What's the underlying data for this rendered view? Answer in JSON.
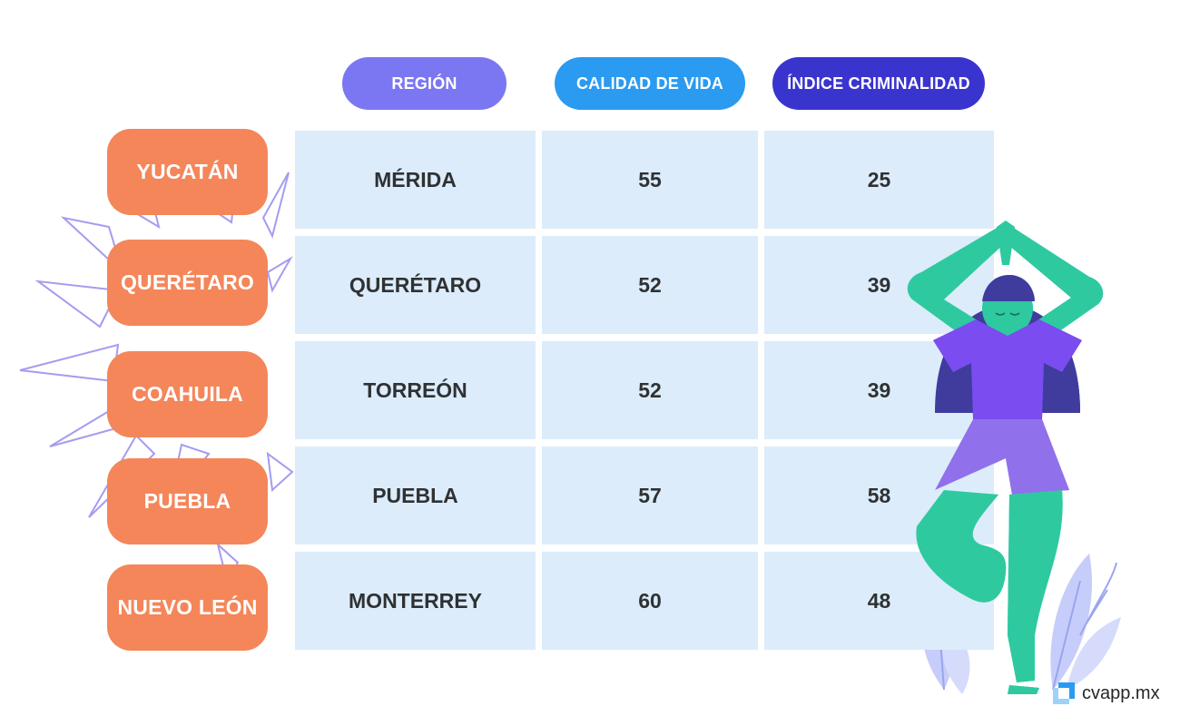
{
  "headers": {
    "region": "REGIÓN",
    "calidad": "CALIDAD DE VIDA",
    "criminalidad": "ÍNDICE CRIMINALIDAD"
  },
  "rows": [
    {
      "state": "YUCATÁN",
      "city": "MÉRIDA",
      "calidad": "55",
      "criminalidad": "25"
    },
    {
      "state": "QUERÉTARO",
      "city": "QUERÉTARO",
      "calidad": "52",
      "criminalidad": "39"
    },
    {
      "state": "COAHUILA",
      "city": "TORREÓN",
      "calidad": "52",
      "criminalidad": "39"
    },
    {
      "state": "PUEBLA",
      "city": "PUEBLA",
      "calidad": "57",
      "criminalidad": "58"
    },
    {
      "state": "NUEVO LEÓN",
      "city": "MONTERREY",
      "calidad": "60",
      "criminalidad": "48"
    }
  ],
  "logo": {
    "text": "cvapp.mx"
  },
  "colors": {
    "region_header": "#7b77f2",
    "calidad_header": "#2a9bf0",
    "criminalidad_header": "#3a34cf",
    "state_pill": "#f4865a",
    "cell": "#dcecfb"
  }
}
